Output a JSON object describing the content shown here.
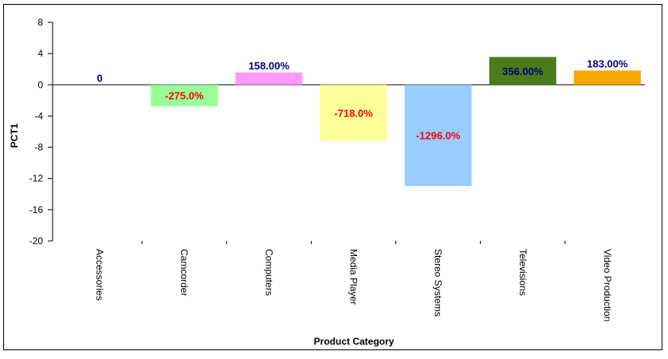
{
  "chart_data": {
    "type": "bar",
    "title": "",
    "xlabel": "Product Category",
    "ylabel": "PCT1",
    "ylim": [
      -20,
      8
    ],
    "yticks": [
      8,
      4,
      0,
      -4,
      -8,
      -12,
      -16,
      -20
    ],
    "grid": false,
    "categories": [
      "Accessories",
      "Camcorder",
      "Computers",
      "Media Player",
      "Stereo Systems",
      "Televisions",
      "Video Production"
    ],
    "values": [
      0,
      -2.75,
      1.58,
      -7.18,
      -12.96,
      3.56,
      1.83
    ],
    "data_labels": [
      "0",
      "-275.0%",
      "158.00%",
      "-718.0%",
      "-1296.0%",
      "356.00%",
      "183.00%"
    ],
    "bar_colors": [
      "#ffffff",
      "#99ff99",
      "#ff99ff",
      "#ffff99",
      "#99ccff",
      "#4a7c17",
      "#f2a900"
    ],
    "label_colors": {
      "positive": "#000080",
      "negative": "#ff0000"
    }
  }
}
